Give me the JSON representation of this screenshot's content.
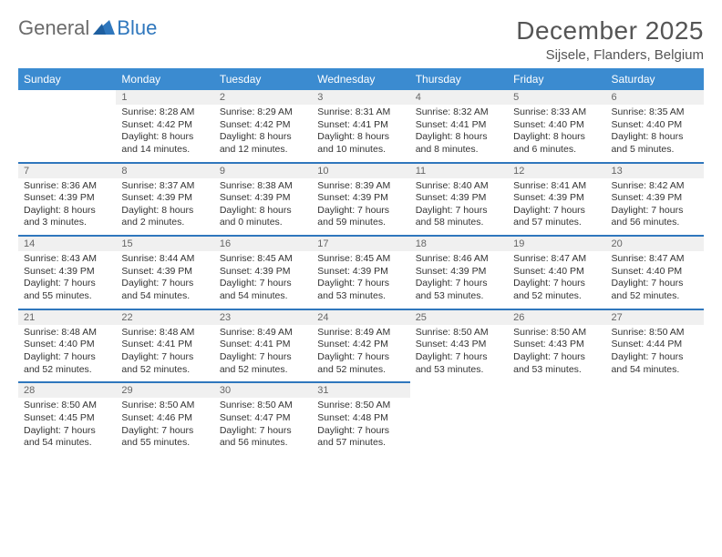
{
  "brand": {
    "general": "General",
    "blue": "Blue"
  },
  "header": {
    "title": "December 2025",
    "location": "Sijsele, Flanders, Belgium"
  },
  "style": {
    "header_bg": "#3b8bd0",
    "header_text": "#ffffff",
    "daynum_bg": "#f0f0f0",
    "daynum_text": "#666666",
    "cell_text": "#333333",
    "rule_color": "#2f77bd",
    "font_family": "Arial",
    "month_fontsize": 28,
    "loc_fontsize": 15,
    "header_cell_fontsize": 12,
    "cell_fontsize": 10.5
  },
  "calendar": {
    "type": "table",
    "columns": [
      "Sunday",
      "Monday",
      "Tuesday",
      "Wednesday",
      "Thursday",
      "Friday",
      "Saturday"
    ],
    "weeks": [
      [
        null,
        {
          "n": "1",
          "sr": "Sunrise: 8:28 AM",
          "ss": "Sunset: 4:42 PM",
          "dl": "Daylight: 8 hours and 14 minutes."
        },
        {
          "n": "2",
          "sr": "Sunrise: 8:29 AM",
          "ss": "Sunset: 4:42 PM",
          "dl": "Daylight: 8 hours and 12 minutes."
        },
        {
          "n": "3",
          "sr": "Sunrise: 8:31 AM",
          "ss": "Sunset: 4:41 PM",
          "dl": "Daylight: 8 hours and 10 minutes."
        },
        {
          "n": "4",
          "sr": "Sunrise: 8:32 AM",
          "ss": "Sunset: 4:41 PM",
          "dl": "Daylight: 8 hours and 8 minutes."
        },
        {
          "n": "5",
          "sr": "Sunrise: 8:33 AM",
          "ss": "Sunset: 4:40 PM",
          "dl": "Daylight: 8 hours and 6 minutes."
        },
        {
          "n": "6",
          "sr": "Sunrise: 8:35 AM",
          "ss": "Sunset: 4:40 PM",
          "dl": "Daylight: 8 hours and 5 minutes."
        }
      ],
      [
        {
          "n": "7",
          "sr": "Sunrise: 8:36 AM",
          "ss": "Sunset: 4:39 PM",
          "dl": "Daylight: 8 hours and 3 minutes."
        },
        {
          "n": "8",
          "sr": "Sunrise: 8:37 AM",
          "ss": "Sunset: 4:39 PM",
          "dl": "Daylight: 8 hours and 2 minutes."
        },
        {
          "n": "9",
          "sr": "Sunrise: 8:38 AM",
          "ss": "Sunset: 4:39 PM",
          "dl": "Daylight: 8 hours and 0 minutes."
        },
        {
          "n": "10",
          "sr": "Sunrise: 8:39 AM",
          "ss": "Sunset: 4:39 PM",
          "dl": "Daylight: 7 hours and 59 minutes."
        },
        {
          "n": "11",
          "sr": "Sunrise: 8:40 AM",
          "ss": "Sunset: 4:39 PM",
          "dl": "Daylight: 7 hours and 58 minutes."
        },
        {
          "n": "12",
          "sr": "Sunrise: 8:41 AM",
          "ss": "Sunset: 4:39 PM",
          "dl": "Daylight: 7 hours and 57 minutes."
        },
        {
          "n": "13",
          "sr": "Sunrise: 8:42 AM",
          "ss": "Sunset: 4:39 PM",
          "dl": "Daylight: 7 hours and 56 minutes."
        }
      ],
      [
        {
          "n": "14",
          "sr": "Sunrise: 8:43 AM",
          "ss": "Sunset: 4:39 PM",
          "dl": "Daylight: 7 hours and 55 minutes."
        },
        {
          "n": "15",
          "sr": "Sunrise: 8:44 AM",
          "ss": "Sunset: 4:39 PM",
          "dl": "Daylight: 7 hours and 54 minutes."
        },
        {
          "n": "16",
          "sr": "Sunrise: 8:45 AM",
          "ss": "Sunset: 4:39 PM",
          "dl": "Daylight: 7 hours and 54 minutes."
        },
        {
          "n": "17",
          "sr": "Sunrise: 8:45 AM",
          "ss": "Sunset: 4:39 PM",
          "dl": "Daylight: 7 hours and 53 minutes."
        },
        {
          "n": "18",
          "sr": "Sunrise: 8:46 AM",
          "ss": "Sunset: 4:39 PM",
          "dl": "Daylight: 7 hours and 53 minutes."
        },
        {
          "n": "19",
          "sr": "Sunrise: 8:47 AM",
          "ss": "Sunset: 4:40 PM",
          "dl": "Daylight: 7 hours and 52 minutes."
        },
        {
          "n": "20",
          "sr": "Sunrise: 8:47 AM",
          "ss": "Sunset: 4:40 PM",
          "dl": "Daylight: 7 hours and 52 minutes."
        }
      ],
      [
        {
          "n": "21",
          "sr": "Sunrise: 8:48 AM",
          "ss": "Sunset: 4:40 PM",
          "dl": "Daylight: 7 hours and 52 minutes."
        },
        {
          "n": "22",
          "sr": "Sunrise: 8:48 AM",
          "ss": "Sunset: 4:41 PM",
          "dl": "Daylight: 7 hours and 52 minutes."
        },
        {
          "n": "23",
          "sr": "Sunrise: 8:49 AM",
          "ss": "Sunset: 4:41 PM",
          "dl": "Daylight: 7 hours and 52 minutes."
        },
        {
          "n": "24",
          "sr": "Sunrise: 8:49 AM",
          "ss": "Sunset: 4:42 PM",
          "dl": "Daylight: 7 hours and 52 minutes."
        },
        {
          "n": "25",
          "sr": "Sunrise: 8:50 AM",
          "ss": "Sunset: 4:43 PM",
          "dl": "Daylight: 7 hours and 53 minutes."
        },
        {
          "n": "26",
          "sr": "Sunrise: 8:50 AM",
          "ss": "Sunset: 4:43 PM",
          "dl": "Daylight: 7 hours and 53 minutes."
        },
        {
          "n": "27",
          "sr": "Sunrise: 8:50 AM",
          "ss": "Sunset: 4:44 PM",
          "dl": "Daylight: 7 hours and 54 minutes."
        }
      ],
      [
        {
          "n": "28",
          "sr": "Sunrise: 8:50 AM",
          "ss": "Sunset: 4:45 PM",
          "dl": "Daylight: 7 hours and 54 minutes."
        },
        {
          "n": "29",
          "sr": "Sunrise: 8:50 AM",
          "ss": "Sunset: 4:46 PM",
          "dl": "Daylight: 7 hours and 55 minutes."
        },
        {
          "n": "30",
          "sr": "Sunrise: 8:50 AM",
          "ss": "Sunset: 4:47 PM",
          "dl": "Daylight: 7 hours and 56 minutes."
        },
        {
          "n": "31",
          "sr": "Sunrise: 8:50 AM",
          "ss": "Sunset: 4:48 PM",
          "dl": "Daylight: 7 hours and 57 minutes."
        },
        null,
        null,
        null
      ]
    ]
  }
}
